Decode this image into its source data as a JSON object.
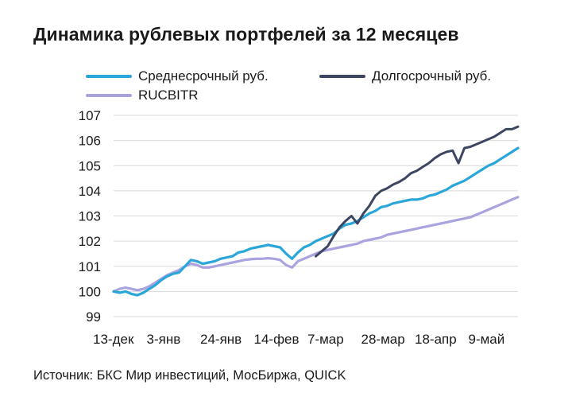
{
  "chart_data": {
    "type": "line",
    "title": "Динамика рублевых портфелей за 12 месяцев",
    "source": "Источник: БКС Мир инвестиций, МосБиржа, QUICK",
    "xlabel": "",
    "ylabel": "",
    "ylim": [
      99,
      107
    ],
    "yticks": [
      "99",
      "100",
      "101",
      "102",
      "103",
      "104",
      "105",
      "106",
      "107"
    ],
    "xticks": [
      "13-дек",
      "3-янв",
      "24-янв",
      "14-фев",
      "7-мар",
      "28-мар",
      "18-апр",
      "9-май"
    ],
    "grid": "horizontal",
    "legend_position": "top",
    "series": [
      {
        "name": "Среднесрочный руб.",
        "color": "#2AA6D8",
        "points": [
          [
            0,
            100.0
          ],
          [
            1,
            99.95
          ],
          [
            2,
            100.0
          ],
          [
            3,
            99.9
          ],
          [
            4,
            99.85
          ],
          [
            5,
            99.95
          ],
          [
            6,
            100.1
          ],
          [
            7,
            100.25
          ],
          [
            8,
            100.45
          ],
          [
            9,
            100.6
          ],
          [
            10,
            100.7
          ],
          [
            11,
            100.75
          ],
          [
            12,
            101.0
          ],
          [
            13,
            101.25
          ],
          [
            14,
            101.2
          ],
          [
            15,
            101.1
          ],
          [
            16,
            101.15
          ],
          [
            17,
            101.2
          ],
          [
            18,
            101.3
          ],
          [
            19,
            101.35
          ],
          [
            20,
            101.4
          ],
          [
            21,
            101.55
          ],
          [
            22,
            101.6
          ],
          [
            23,
            101.7
          ],
          [
            24,
            101.75
          ],
          [
            25,
            101.8
          ],
          [
            26,
            101.85
          ],
          [
            27,
            101.8
          ],
          [
            28,
            101.75
          ],
          [
            29,
            101.5
          ],
          [
            30,
            101.3
          ],
          [
            31,
            101.55
          ],
          [
            32,
            101.75
          ],
          [
            33,
            101.85
          ],
          [
            34,
            102.0
          ],
          [
            35,
            102.1
          ],
          [
            36,
            102.2
          ],
          [
            37,
            102.3
          ],
          [
            38,
            102.5
          ],
          [
            39,
            102.65
          ],
          [
            40,
            102.7
          ],
          [
            41,
            102.8
          ],
          [
            42,
            102.95
          ],
          [
            43,
            103.1
          ],
          [
            44,
            103.2
          ],
          [
            45,
            103.35
          ],
          [
            46,
            103.4
          ],
          [
            47,
            103.5
          ],
          [
            48,
            103.55
          ],
          [
            49,
            103.6
          ],
          [
            50,
            103.65
          ],
          [
            51,
            103.65
          ],
          [
            52,
            103.7
          ],
          [
            53,
            103.8
          ],
          [
            54,
            103.85
          ],
          [
            55,
            103.95
          ],
          [
            56,
            104.05
          ],
          [
            57,
            104.2
          ],
          [
            58,
            104.3
          ],
          [
            59,
            104.4
          ],
          [
            60,
            104.55
          ],
          [
            61,
            104.7
          ],
          [
            62,
            104.85
          ],
          [
            63,
            105.0
          ],
          [
            64,
            105.1
          ],
          [
            65,
            105.25
          ],
          [
            66,
            105.4
          ],
          [
            67,
            105.55
          ],
          [
            68,
            105.7
          ]
        ]
      },
      {
        "name": "Долгосрочный руб.",
        "color": "#3D4660",
        "points": [
          [
            34,
            101.4
          ],
          [
            35,
            101.6
          ],
          [
            36,
            101.8
          ],
          [
            37,
            102.2
          ],
          [
            38,
            102.55
          ],
          [
            39,
            102.8
          ],
          [
            40,
            103.0
          ],
          [
            41,
            102.7
          ],
          [
            42,
            103.1
          ],
          [
            43,
            103.4
          ],
          [
            44,
            103.8
          ],
          [
            45,
            104.0
          ],
          [
            46,
            104.1
          ],
          [
            47,
            104.25
          ],
          [
            48,
            104.35
          ],
          [
            49,
            104.5
          ],
          [
            50,
            104.7
          ],
          [
            51,
            104.8
          ],
          [
            52,
            104.95
          ],
          [
            53,
            105.1
          ],
          [
            54,
            105.3
          ],
          [
            55,
            105.45
          ],
          [
            56,
            105.55
          ],
          [
            57,
            105.6
          ],
          [
            58,
            105.1
          ],
          [
            59,
            105.7
          ],
          [
            60,
            105.75
          ],
          [
            61,
            105.85
          ],
          [
            62,
            105.95
          ],
          [
            63,
            106.05
          ],
          [
            64,
            106.15
          ],
          [
            65,
            106.3
          ],
          [
            66,
            106.45
          ],
          [
            67,
            106.45
          ],
          [
            68,
            106.55
          ]
        ]
      },
      {
        "name": "RUCBITR",
        "color": "#A9A3E0",
        "points": [
          [
            0,
            100.0
          ],
          [
            1,
            100.1
          ],
          [
            2,
            100.15
          ],
          [
            3,
            100.1
          ],
          [
            4,
            100.05
          ],
          [
            5,
            100.1
          ],
          [
            6,
            100.2
          ],
          [
            7,
            100.35
          ],
          [
            8,
            100.5
          ],
          [
            9,
            100.65
          ],
          [
            10,
            100.75
          ],
          [
            11,
            100.85
          ],
          [
            12,
            101.0
          ],
          [
            13,
            101.1
          ],
          [
            14,
            101.05
          ],
          [
            15,
            100.95
          ],
          [
            16,
            100.95
          ],
          [
            17,
            101.0
          ],
          [
            18,
            101.05
          ],
          [
            19,
            101.1
          ],
          [
            20,
            101.15
          ],
          [
            21,
            101.2
          ],
          [
            22,
            101.25
          ],
          [
            23,
            101.28
          ],
          [
            24,
            101.3
          ],
          [
            25,
            101.3
          ],
          [
            26,
            101.32
          ],
          [
            27,
            101.3
          ],
          [
            28,
            101.25
          ],
          [
            29,
            101.05
          ],
          [
            30,
            100.95
          ],
          [
            31,
            101.2
          ],
          [
            32,
            101.3
          ],
          [
            33,
            101.4
          ],
          [
            34,
            101.5
          ],
          [
            35,
            101.6
          ],
          [
            36,
            101.65
          ],
          [
            37,
            101.7
          ],
          [
            38,
            101.75
          ],
          [
            39,
            101.8
          ],
          [
            40,
            101.85
          ],
          [
            41,
            101.9
          ],
          [
            42,
            102.0
          ],
          [
            43,
            102.05
          ],
          [
            44,
            102.1
          ],
          [
            45,
            102.15
          ],
          [
            46,
            102.25
          ],
          [
            47,
            102.3
          ],
          [
            48,
            102.35
          ],
          [
            49,
            102.4
          ],
          [
            50,
            102.45
          ],
          [
            51,
            102.5
          ],
          [
            52,
            102.55
          ],
          [
            53,
            102.6
          ],
          [
            54,
            102.65
          ],
          [
            55,
            102.7
          ],
          [
            56,
            102.75
          ],
          [
            57,
            102.8
          ],
          [
            58,
            102.85
          ],
          [
            59,
            102.9
          ],
          [
            60,
            102.95
          ],
          [
            61,
            103.05
          ],
          [
            62,
            103.15
          ],
          [
            63,
            103.25
          ],
          [
            64,
            103.35
          ],
          [
            65,
            103.45
          ],
          [
            66,
            103.55
          ],
          [
            67,
            103.65
          ],
          [
            68,
            103.75
          ]
        ]
      }
    ]
  }
}
